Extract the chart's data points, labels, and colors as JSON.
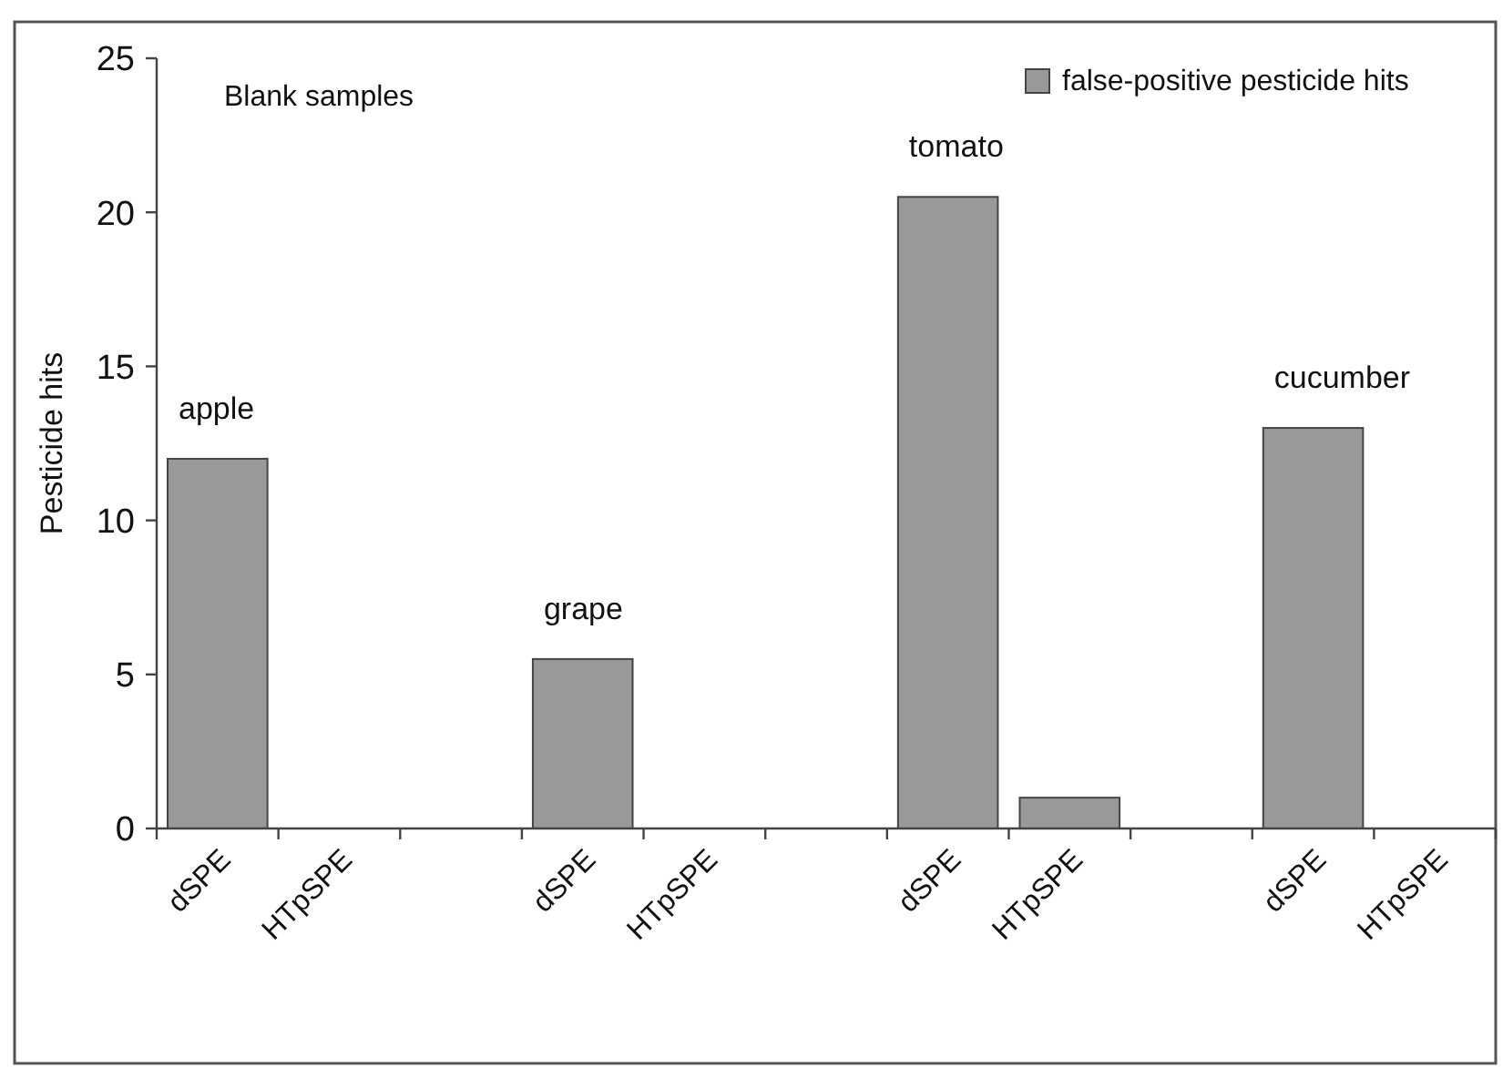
{
  "chart_data": {
    "type": "bar",
    "ylabel": "Pesticide hits",
    "categories": [
      "dSPE",
      "HTpSPE",
      null,
      "dSPE",
      "HTpSPE",
      null,
      "dSPE",
      "HTpSPE",
      null,
      "dSPE",
      "HTpSPE"
    ],
    "series": [
      {
        "name": "false-positive pesticide hits",
        "color": "#999999",
        "values": [
          12,
          0,
          null,
          5.5,
          0,
          null,
          20.5,
          1,
          null,
          13,
          0
        ]
      }
    ],
    "annotations": [
      "Blank samples",
      "apple",
      "grape",
      "tomato",
      "cucumber"
    ],
    "ylim": [
      0,
      25
    ],
    "yticks": [
      0,
      5,
      10,
      15,
      20,
      25
    ],
    "grid": false,
    "legend": "top right"
  }
}
